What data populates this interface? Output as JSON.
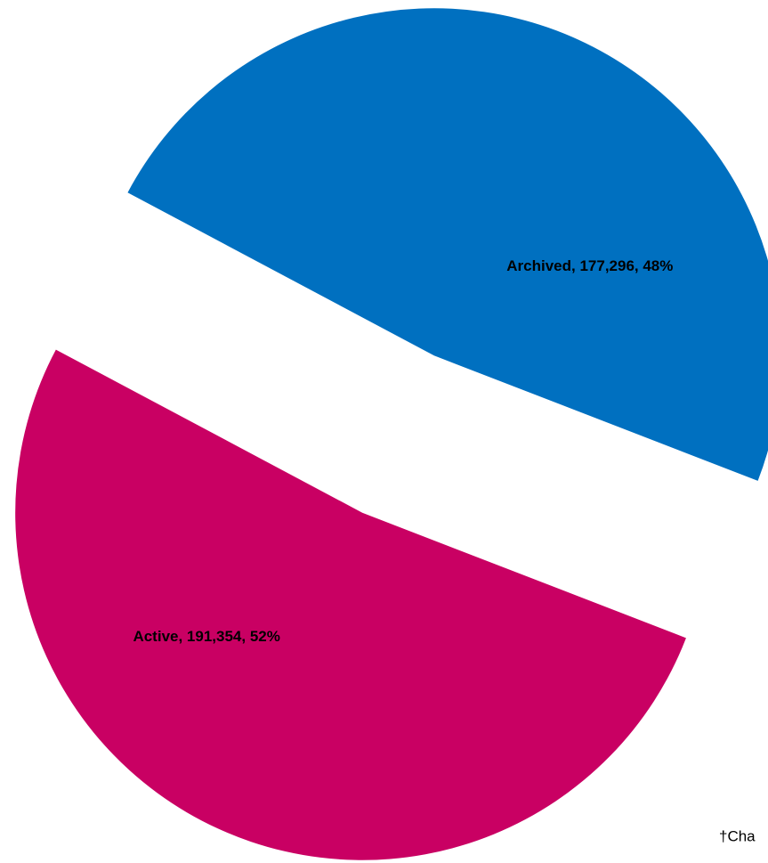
{
  "chart_data": {
    "type": "pie",
    "categories": [
      "Archived",
      "Active"
    ],
    "values": [
      177296,
      191354
    ],
    "value_labels": [
      "Archived, 177,296, 48%",
      "Active, 191,354, 52%"
    ],
    "colors": [
      "#0070c0",
      "#c90063"
    ],
    "exploded": true,
    "note": "†Cha"
  }
}
